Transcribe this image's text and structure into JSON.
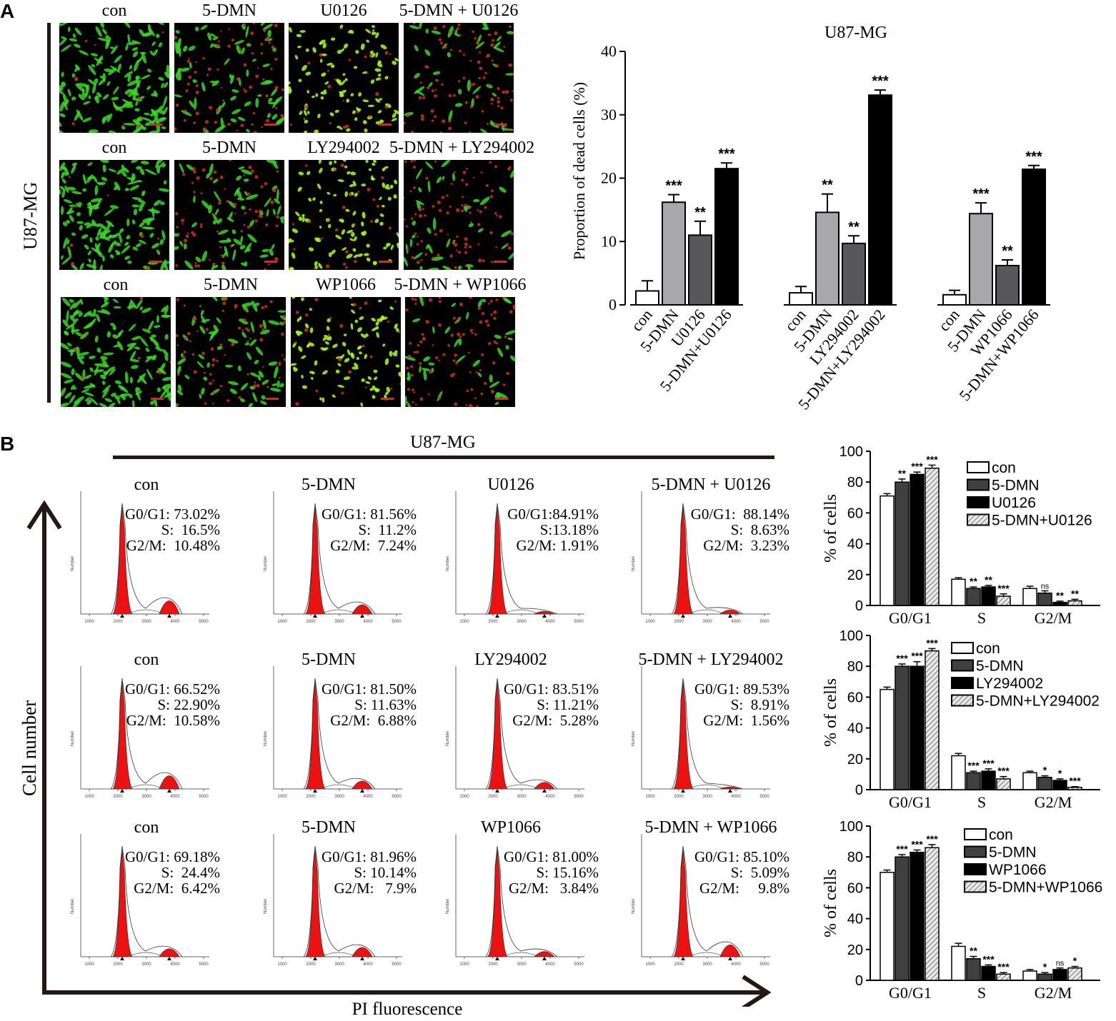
{
  "panel_a": {
    "letter": "A",
    "cell_line_label": "U87-MG",
    "rows": [
      [
        "con",
        "5-DMN",
        "U0126",
        "5-DMN + U0126"
      ],
      [
        "con",
        "5-DMN",
        "LY294002",
        "5-DMN + LY294002"
      ],
      [
        "con",
        "5-DMN",
        "WP1066",
        "5-DMN + WP1066"
      ]
    ],
    "image_styles": [
      "dense-green",
      "mixed",
      "bright-green",
      "sparse-red",
      "dense-green",
      "mixed",
      "bright-green",
      "sparse-red",
      "dense-green",
      "mixed",
      "bright-green",
      "sparse-red"
    ]
  },
  "panel_b": {
    "letter": "B",
    "cell_line_label": "U87-MG",
    "y_axis_label": "Cell number",
    "x_axis_label": "PI fluorescence",
    "histograms": [
      {
        "title": "con",
        "g0g1": "G0/G1: 73.02%",
        "s": "S:  16.5%",
        "g2m": "G2/M:  10.48%",
        "g2_height": 0.1
      },
      {
        "title": "5-DMN",
        "g0g1": "G0/G1: 81.56%",
        "s": "S:  11.2%",
        "g2m": "G2/M:  7.24%",
        "g2_height": 0.07
      },
      {
        "title": "U0126",
        "g0g1": "G0/G1:84.91%",
        "s": "S:13.18%",
        "g2m": "G2/M: 1.91%",
        "g2_height": 0.02
      },
      {
        "title": "5-DMN + U0126",
        "g0g1": "G0/G1:  88.14%",
        "s": "S:  8.63%",
        "g2m": "G2/M:  3.23%",
        "g2_height": 0.03
      },
      {
        "title": "con",
        "g0g1": "G0/G1: 66.52%",
        "s": "S: 22.90%",
        "g2m": "G2/M:  10.58%",
        "g2_height": 0.1
      },
      {
        "title": "5-DMN",
        "g0g1": "G0/G1: 81.50%",
        "s": "S: 11.63%",
        "g2m": "G2/M:  6.88%",
        "g2_height": 0.06
      },
      {
        "title": "LY294002",
        "g0g1": "G0/G1: 83.51%",
        "s": "S: 11.21%",
        "g2m": "G2/M:  5.28%",
        "g2_height": 0.05
      },
      {
        "title": "5-DMN + LY294002",
        "g0g1": "G0/G1: 89.53%",
        "s": "S:  8.91%",
        "g2m": "G2/M:  1.56%",
        "g2_height": 0.015
      },
      {
        "title": "con",
        "g0g1": "G0/G1: 69.18%",
        "s": "S:  24.4%",
        "g2m": "G2/M:  6.42%",
        "g2_height": 0.06
      },
      {
        "title": "5-DMN",
        "g0g1": "G0/G1: 81.96%",
        "s": "S: 10.14%",
        "g2m": "G2/M:   7.9%",
        "g2_height": 0.07
      },
      {
        "title": "WP1066",
        "g0g1": "G0/G1: 81.00%",
        "s": "S: 15.16%",
        "g2m": "G2/M:   3.84%",
        "g2_height": 0.04
      },
      {
        "title": "5-DMN + WP1066",
        "g0g1": "G0/G1: 85.10%",
        "s": "S:  5.09%",
        "g2m": "G2/M:     9.8%",
        "g2_height": 0.09
      }
    ],
    "hist_x_ticks": [
      "1000",
      "2000",
      "3000",
      "4000",
      "5000"
    ],
    "hist_y_label": "Number"
  },
  "chart_data": [
    {
      "type": "bar",
      "title": "U87-MG",
      "ylabel": "Proportion of dead cells (%)",
      "ylim": [
        0,
        40
      ],
      "yticks": [
        "0",
        "10",
        "20",
        "30",
        "40"
      ],
      "groups": [
        {
          "categories": [
            "con",
            "5-DMN",
            "U0126",
            "5-DMN+U0126"
          ],
          "values": [
            2.2,
            16.2,
            11.0,
            21.5
          ],
          "errors": [
            1.6,
            1.2,
            2.2,
            0.9
          ],
          "sig": [
            "",
            "***",
            "**",
            "***"
          ]
        },
        {
          "categories": [
            "con",
            "5-DMN",
            "LY294002",
            "5-DMN+LY294002"
          ],
          "values": [
            1.9,
            14.6,
            9.7,
            33.1
          ],
          "errors": [
            1.0,
            2.9,
            1.2,
            0.8
          ],
          "sig": [
            "",
            "**",
            "**",
            "***"
          ]
        },
        {
          "categories": [
            "con",
            "5-DMN",
            "WP1066",
            "5-DMN+WP1066"
          ],
          "values": [
            1.6,
            14.4,
            6.2,
            21.4
          ],
          "errors": [
            0.7,
            1.7,
            0.9,
            0.6
          ],
          "sig": [
            "",
            "***",
            "**",
            "***"
          ]
        }
      ],
      "colors": [
        "#ffffff",
        "#a8a8ab",
        "#58585a",
        "#000000"
      ],
      "grid": false
    },
    {
      "type": "bar",
      "ylabel": "% of cells",
      "ylim": [
        0,
        100
      ],
      "yticks": [
        "0",
        "20",
        "40",
        "60",
        "80",
        "100"
      ],
      "categories": [
        "G0/G1",
        "S",
        "G2/M"
      ],
      "series": [
        {
          "name": "con",
          "values": [
            71,
            17,
            11
          ],
          "errors": [
            1.5,
            1,
            1.5
          ],
          "sig": [
            "",
            "",
            ""
          ]
        },
        {
          "name": "5-DMN",
          "values": [
            80,
            11,
            8
          ],
          "errors": [
            2,
            1,
            1.5
          ],
          "sig": [
            "**",
            "**",
            "ns"
          ]
        },
        {
          "name": "U0126",
          "values": [
            85,
            12,
            2
          ],
          "errors": [
            1.5,
            1,
            0.8
          ],
          "sig": [
            "***",
            "**",
            "**"
          ]
        },
        {
          "name": "5-DMN+U0126",
          "values": [
            89,
            6,
            3
          ],
          "errors": [
            2,
            1.5,
            1
          ],
          "sig": [
            "***",
            "***",
            "**"
          ]
        }
      ]
    },
    {
      "type": "bar",
      "ylabel": "% of cells",
      "ylim": [
        0,
        100
      ],
      "yticks": [
        "0",
        "20",
        "40",
        "60",
        "80",
        "100"
      ],
      "categories": [
        "G0/G1",
        "S",
        "G2/M"
      ],
      "series": [
        {
          "name": "con",
          "values": [
            65,
            22,
            11
          ],
          "errors": [
            1.5,
            1.5,
            1
          ],
          "sig": [
            "",
            "",
            ""
          ]
        },
        {
          "name": "5-DMN",
          "values": [
            80,
            11,
            8
          ],
          "errors": [
            1.5,
            1,
            1
          ],
          "sig": [
            "***",
            "***",
            "*"
          ]
        },
        {
          "name": "LY294002",
          "values": [
            80,
            12,
            6
          ],
          "errors": [
            3,
            1.5,
            1
          ],
          "sig": [
            "***",
            "***",
            "*"
          ]
        },
        {
          "name": "5-DMN+LY294002",
          "values": [
            90,
            7,
            1.5
          ],
          "errors": [
            1.5,
            1.5,
            0.5
          ],
          "sig": [
            "***",
            "***",
            "***"
          ]
        }
      ]
    },
    {
      "type": "bar",
      "ylabel": "% of cells",
      "ylim": [
        0,
        100
      ],
      "yticks": [
        "0",
        "20",
        "40",
        "60",
        "80",
        "100"
      ],
      "categories": [
        "G0/G1",
        "S",
        "G2/M"
      ],
      "series": [
        {
          "name": "con",
          "values": [
            70,
            22,
            6
          ],
          "errors": [
            1.5,
            2,
            1
          ],
          "sig": [
            "",
            "",
            ""
          ]
        },
        {
          "name": "5-DMN",
          "values": [
            80,
            14,
            4
          ],
          "errors": [
            1.5,
            1.5,
            1
          ],
          "sig": [
            "***",
            "**",
            "*"
          ]
        },
        {
          "name": "WP1066",
          "values": [
            83,
            9,
            7
          ],
          "errors": [
            1.5,
            1,
            1
          ],
          "sig": [
            "***",
            "***",
            "ns"
          ]
        },
        {
          "name": "5-DMN+WP1066",
          "values": [
            86,
            4,
            8
          ],
          "errors": [
            2,
            1,
            1
          ],
          "sig": [
            "***",
            "***",
            "*"
          ]
        }
      ]
    }
  ]
}
